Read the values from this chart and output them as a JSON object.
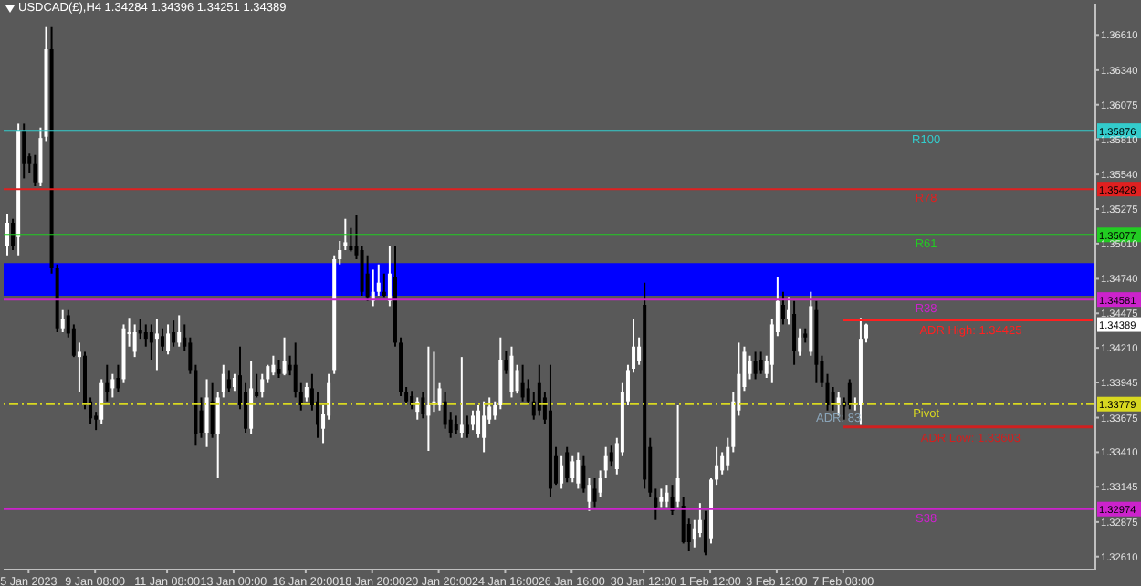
{
  "chart_data": {
    "type": "candlestick",
    "title": "USDCAD(£),H4  1.34284 1.34396 1.34251 1.34389",
    "categories": [
      null,
      null,
      null,
      null,
      "5 Jan 2023",
      null,
      null,
      null,
      null,
      null,
      null,
      null,
      null,
      null,
      null,
      null,
      "9 Jan 08:00",
      null,
      null,
      null,
      null,
      null,
      null,
      null,
      null,
      null,
      null,
      null,
      null,
      "11 Jan 08:00",
      null,
      null,
      null,
      null,
      null,
      null,
      null,
      null,
      null,
      null,
      null,
      "13 Jan 00:00",
      null,
      null,
      null,
      null,
      null,
      null,
      null,
      null,
      null,
      null,
      null,
      null,
      "16 Jan 20:00",
      null,
      null,
      null,
      null,
      null,
      null,
      null,
      null,
      null,
      null,
      null,
      "18 Jan 20:00",
      null,
      null,
      null,
      null,
      null,
      null,
      null,
      null,
      null,
      null,
      null,
      "20 Jan 20:00",
      null,
      null,
      null,
      null,
      null,
      null,
      null,
      null,
      null,
      null,
      null,
      "24 Jan 16:00",
      null,
      null,
      null,
      null,
      null,
      null,
      null,
      null,
      null,
      null,
      null,
      "26 Jan 16:00",
      null,
      null,
      null,
      null,
      null,
      null,
      null,
      null,
      null,
      null,
      null,
      null,
      "30 Jan 12:00",
      null,
      null,
      null,
      null,
      null,
      null,
      null,
      null,
      null,
      null,
      null,
      "1 Feb 12:00",
      null,
      null,
      null,
      null,
      null,
      null,
      null,
      null,
      null,
      null,
      null,
      "3 Feb 12:00",
      null,
      null,
      null,
      null,
      null,
      null,
      null,
      null,
      null,
      null,
      null,
      "7 Feb 08:00",
      null,
      null,
      null,
      null,
      null,
      null,
      null,
      null,
      null,
      null,
      null,
      null,
      null,
      null,
      null,
      null,
      null,
      null,
      null,
      null,
      null,
      null,
      null,
      null,
      null,
      null,
      null,
      null,
      null,
      null,
      null,
      null,
      null,
      null,
      null,
      null,
      null,
      null,
      null,
      null,
      null,
      null,
      null,
      null,
      null
    ],
    "ohlc": [
      [
        1.3499,
        1.3524,
        1.3492,
        1.3517
      ],
      [
        1.3517,
        1.352,
        1.3496,
        1.3499
      ],
      [
        1.3506,
        1.3593,
        1.3492,
        1.3587
      ],
      [
        1.3587,
        1.3593,
        1.3551,
        1.3562
      ],
      [
        1.3568,
        1.357,
        1.3555,
        1.3562
      ],
      [
        1.3562,
        1.3569,
        1.3545,
        1.3548
      ],
      [
        1.3548,
        1.359,
        1.3545,
        1.3582
      ],
      [
        1.3583,
        1.3667,
        1.3579,
        1.365
      ],
      [
        1.365,
        1.3667,
        1.3478,
        1.3482
      ],
      [
        1.3482,
        1.3485,
        1.3433,
        1.3436
      ],
      [
        1.3436,
        1.345,
        1.3433,
        1.3443
      ],
      [
        1.3446,
        1.345,
        1.3429,
        1.3432
      ],
      [
        1.3436,
        1.3439,
        1.3414,
        1.3415
      ],
      [
        1.3414,
        1.3425,
        1.3387,
        1.3418
      ],
      [
        1.3415,
        1.3418,
        1.3374,
        1.3377
      ],
      [
        1.338,
        1.3383,
        1.3363,
        1.3367
      ],
      [
        1.3369,
        1.3372,
        1.3358,
        1.3366
      ],
      [
        1.3366,
        1.3397,
        1.3363,
        1.3394
      ],
      [
        1.3394,
        1.3408,
        1.338,
        1.3387
      ],
      [
        1.339,
        1.3401,
        1.3383,
        1.3397
      ],
      [
        1.3398,
        1.3408,
        1.3387,
        1.339
      ],
      [
        1.3397,
        1.3439,
        1.3394,
        1.3436
      ],
      [
        1.3432,
        1.3444,
        1.3422,
        1.3433
      ],
      [
        1.3418,
        1.3439,
        1.3414,
        1.3433
      ],
      [
        1.3435,
        1.3443,
        1.3428,
        1.3432
      ],
      [
        1.3433,
        1.3439,
        1.3422,
        1.3428
      ],
      [
        1.3433,
        1.3439,
        1.3412,
        1.3425
      ],
      [
        1.3428,
        1.3443,
        1.3404,
        1.3432
      ],
      [
        1.343,
        1.3436,
        1.3419,
        1.3422
      ],
      [
        1.3419,
        1.3439,
        1.3416,
        1.3432
      ],
      [
        1.3433,
        1.3442,
        1.3422,
        1.3425
      ],
      [
        1.3425,
        1.3446,
        1.3422,
        1.3433
      ],
      [
        1.3429,
        1.3439,
        1.3419,
        1.3422
      ],
      [
        1.3425,
        1.3429,
        1.3401,
        1.3404
      ],
      [
        1.3404,
        1.3408,
        1.3346,
        1.3355
      ],
      [
        1.3373,
        1.3383,
        1.3352,
        1.3356
      ],
      [
        1.3356,
        1.3397,
        1.3345,
        1.3383
      ],
      [
        1.338,
        1.3394,
        1.3352,
        1.3355
      ],
      [
        1.3355,
        1.3387,
        1.3321,
        1.3383
      ],
      [
        1.3387,
        1.3408,
        1.3383,
        1.3401
      ],
      [
        1.3397,
        1.3404,
        1.3387,
        1.339
      ],
      [
        1.3391,
        1.3401,
        1.3388,
        1.3398
      ],
      [
        1.34,
        1.3422,
        1.3374,
        1.3377
      ],
      [
        1.3387,
        1.3394,
        1.3356,
        1.3359
      ],
      [
        1.3359,
        1.3411,
        1.3355,
        1.339
      ],
      [
        1.3387,
        1.3401,
        1.3383,
        1.3384
      ],
      [
        1.3387,
        1.3401,
        1.3383,
        1.3397
      ],
      [
        1.3397,
        1.3408,
        1.3394,
        1.3407
      ],
      [
        1.3402,
        1.3415,
        1.34,
        1.3408
      ],
      [
        1.3405,
        1.3412,
        1.3398,
        1.3401
      ],
      [
        1.3401,
        1.3429,
        1.34,
        1.3411
      ],
      [
        1.3408,
        1.3415,
        1.34,
        1.3404
      ],
      [
        1.3408,
        1.3425,
        1.3383,
        1.3387
      ],
      [
        1.3387,
        1.3394,
        1.3373,
        1.3377
      ],
      [
        1.3383,
        1.3394,
        1.338,
        1.3391
      ],
      [
        1.339,
        1.3401,
        1.3373,
        1.3377
      ],
      [
        1.338,
        1.3387,
        1.3352,
        1.3362
      ],
      [
        1.3359,
        1.3377,
        1.3348,
        1.337
      ],
      [
        1.3369,
        1.3401,
        1.3366,
        1.3394
      ],
      [
        1.3404,
        1.3492,
        1.3401,
        1.3489
      ],
      [
        1.3489,
        1.3503,
        1.3485,
        1.3496
      ],
      [
        1.3499,
        1.352,
        1.3496,
        1.3502
      ],
      [
        1.3499,
        1.3513,
        1.3495,
        1.3496
      ],
      [
        1.3499,
        1.3523,
        1.3489,
        1.3492
      ],
      [
        1.3496,
        1.3499,
        1.3461,
        1.3464
      ],
      [
        1.3478,
        1.3492,
        1.3457,
        1.346
      ],
      [
        1.3457,
        1.3481,
        1.3453,
        1.3464
      ],
      [
        1.3464,
        1.3485,
        1.3461,
        1.3471
      ],
      [
        1.3464,
        1.3478,
        1.346,
        1.3461
      ],
      [
        1.3457,
        1.3499,
        1.3453,
        1.3478
      ],
      [
        1.3475,
        1.3499,
        1.3422,
        1.3425
      ],
      [
        1.3425,
        1.3429,
        1.3384,
        1.3387
      ],
      [
        1.3387,
        1.3391,
        1.3377,
        1.338
      ],
      [
        1.3384,
        1.3388,
        1.3374,
        1.3377
      ],
      [
        1.3372,
        1.3383,
        1.3366,
        1.338
      ],
      [
        1.3383,
        1.3387,
        1.3367,
        1.337
      ],
      [
        1.3369,
        1.3422,
        1.3342,
        1.3377
      ],
      [
        1.3377,
        1.3418,
        1.3372,
        1.338
      ],
      [
        1.3377,
        1.3394,
        1.3373,
        1.339
      ],
      [
        1.338,
        1.3387,
        1.3359,
        1.3362
      ],
      [
        1.3366,
        1.3372,
        1.3352,
        1.3356
      ],
      [
        1.3363,
        1.3369,
        1.3355,
        1.3358
      ],
      [
        1.3356,
        1.3414,
        1.3352,
        1.3362
      ],
      [
        1.3362,
        1.3369,
        1.3352,
        1.3355
      ],
      [
        1.3362,
        1.3373,
        1.3358,
        1.3369
      ],
      [
        1.3355,
        1.3377,
        1.3352,
        1.3373
      ],
      [
        1.3352,
        1.338,
        1.3341,
        1.3369
      ],
      [
        1.3366,
        1.3383,
        1.3363,
        1.3376
      ],
      [
        1.3369,
        1.338,
        1.3366,
        1.3377
      ],
      [
        1.3377,
        1.3429,
        1.3374,
        1.3412
      ],
      [
        1.3412,
        1.3419,
        1.3401,
        1.3404
      ],
      [
        1.3387,
        1.3422,
        1.3383,
        1.3415
      ],
      [
        1.3388,
        1.3408,
        1.3386,
        1.3404
      ],
      [
        1.3394,
        1.3408,
        1.338,
        1.3383
      ],
      [
        1.339,
        1.3397,
        1.3377,
        1.338
      ],
      [
        1.338,
        1.3387,
        1.3366,
        1.3369
      ],
      [
        1.3394,
        1.3408,
        1.3369,
        1.3373
      ],
      [
        1.3383,
        1.3387,
        1.3363,
        1.3366
      ],
      [
        1.3373,
        1.3408,
        1.3307,
        1.3313
      ],
      [
        1.3338,
        1.3345,
        1.3316,
        1.3317
      ],
      [
        1.3317,
        1.3338,
        1.3313,
        1.3331
      ],
      [
        1.3341,
        1.3345,
        1.3318,
        1.3321
      ],
      [
        1.3321,
        1.3338,
        1.3318,
        1.3334
      ],
      [
        1.3317,
        1.3341,
        1.3313,
        1.3335
      ],
      [
        1.3331,
        1.3338,
        1.331,
        1.3313
      ],
      [
        1.3303,
        1.3321,
        1.3296,
        1.3316
      ],
      [
        1.3313,
        1.3321,
        1.3299,
        1.3303
      ],
      [
        1.331,
        1.3327,
        1.3307,
        1.3321
      ],
      [
        1.3327,
        1.3345,
        1.3321,
        1.3338
      ],
      [
        1.3341,
        1.3346,
        1.333,
        1.3334
      ],
      [
        1.3328,
        1.3352,
        1.3324,
        1.3348
      ],
      [
        1.3341,
        1.3394,
        1.3338,
        1.3387
      ],
      [
        1.338,
        1.3408,
        1.3377,
        1.3404
      ],
      [
        1.3405,
        1.3443,
        1.3402,
        1.3422
      ],
      [
        1.3411,
        1.3429,
        1.3408,
        1.3422
      ],
      [
        1.3454,
        1.3471,
        1.3313,
        1.332
      ],
      [
        1.3345,
        1.3352,
        1.3307,
        1.331
      ],
      [
        1.3306,
        1.3313,
        1.3289,
        1.3299
      ],
      [
        1.3303,
        1.3313,
        1.3299,
        1.3307
      ],
      [
        1.3303,
        1.3316,
        1.3299,
        1.331
      ],
      [
        1.3307,
        1.3316,
        1.3293,
        1.3296
      ],
      [
        1.3303,
        1.3377,
        1.3299,
        1.3321
      ],
      [
        1.33,
        1.3307,
        1.3271,
        1.3272
      ],
      [
        1.3286,
        1.329,
        1.3265,
        1.3272
      ],
      [
        1.3274,
        1.3289,
        1.3268,
        1.3282
      ],
      [
        1.3279,
        1.3302,
        1.3276,
        1.3289
      ],
      [
        1.3289,
        1.3296,
        1.3262,
        1.3264
      ],
      [
        1.3275,
        1.3321,
        1.3271,
        1.332
      ],
      [
        1.332,
        1.3345,
        1.3316,
        1.3331
      ],
      [
        1.3327,
        1.3341,
        1.3324,
        1.3338
      ],
      [
        1.3331,
        1.3352,
        1.3327,
        1.3345
      ],
      [
        1.3345,
        1.3387,
        1.3341,
        1.338
      ],
      [
        1.3373,
        1.3425,
        1.3369,
        1.3401
      ],
      [
        1.3391,
        1.3422,
        1.3388,
        1.3418
      ],
      [
        1.3401,
        1.3415,
        1.3397,
        1.3411
      ],
      [
        1.3411,
        1.3418,
        1.3397,
        1.3401
      ],
      [
        1.3412,
        1.3418,
        1.3401,
        1.3404
      ],
      [
        1.3401,
        1.3415,
        1.3398,
        1.3411
      ],
      [
        1.3408,
        1.3443,
        1.3394,
        1.3439
      ],
      [
        1.3433,
        1.3475,
        1.343,
        1.3457
      ],
      [
        1.3454,
        1.3464,
        1.3439,
        1.3443
      ],
      [
        1.3443,
        1.346,
        1.3439,
        1.345
      ],
      [
        1.3447,
        1.3457,
        1.3408,
        1.3419
      ],
      [
        1.3418,
        1.3436,
        1.3415,
        1.3429
      ],
      [
        1.3432,
        1.3436,
        1.3425,
        1.3429
      ],
      [
        1.3418,
        1.3464,
        1.3415,
        1.3453
      ],
      [
        1.345,
        1.3457,
        1.3394,
        1.3408
      ],
      [
        1.3411,
        1.3415,
        1.3391,
        1.3394
      ],
      [
        1.3394,
        1.3401,
        1.3373,
        1.3377
      ],
      [
        1.3387,
        1.3391,
        1.3373,
        1.3377
      ],
      [
        1.3377,
        1.3387,
        1.3369,
        1.3383
      ],
      [
        1.338,
        1.3383,
        1.3366,
        1.3376
      ],
      [
        1.3394,
        1.3397,
        1.3374,
        1.3377
      ],
      [
        1.3377,
        1.3383,
        1.3373,
        1.3379
      ],
      [
        1.3377,
        1.3444,
        1.3362,
        1.3428
      ],
      [
        1.34284,
        1.34396,
        1.34251,
        1.34389
      ],
      null,
      null,
      null,
      null,
      null,
      null,
      null,
      null,
      null,
      null,
      null,
      null,
      null,
      null,
      null,
      null,
      null,
      null,
      null,
      null,
      null,
      null,
      null,
      null,
      null,
      null,
      null,
      null,
      null,
      null,
      null,
      null,
      null,
      null,
      null,
      null,
      null,
      null,
      null,
      null,
      null
    ],
    "colors": [
      "#ffffff",
      "#000000",
      "#ffffff",
      "#000000",
      "#000000",
      "#000000",
      "#ffffff",
      "#ffffff",
      "#000000",
      "#000000",
      "#ffffff",
      "#000000",
      "#000000",
      "#ffffff",
      "#000000",
      "#000000",
      "#000000",
      "#ffffff",
      "#000000",
      "#ffffff",
      "#000000",
      "#ffffff",
      "#ffffff",
      "#ffffff",
      "#000000",
      "#000000",
      "#000000",
      "#ffffff",
      "#000000",
      "#ffffff",
      "#000000",
      "#ffffff",
      "#000000",
      "#000000",
      "#000000",
      "#000000",
      "#ffffff",
      "#000000",
      "#ffffff",
      "#ffffff",
      "#000000",
      "#ffffff",
      "#000000",
      "#000000",
      "#ffffff",
      "#000000",
      "#ffffff",
      "#ffffff",
      "#ffffff",
      "#000000",
      "#ffffff",
      "#000000",
      "#000000",
      "#000000",
      "#ffffff",
      "#000000",
      "#000000",
      "#ffffff",
      "#ffffff",
      "#ffffff",
      "#ffffff",
      "#ffffff",
      "#000000",
      "#000000",
      "#000000",
      "#000000",
      "#ffffff",
      "#ffffff",
      "#000000",
      "#ffffff",
      "#000000",
      "#000000",
      "#000000",
      "#000000",
      "#ffffff",
      "#000000",
      "#ffffff",
      "#ffffff",
      "#ffffff",
      "#000000",
      "#000000",
      "#000000",
      "#ffffff",
      "#000000",
      "#ffffff",
      "#ffffff",
      "#ffffff",
      "#ffffff",
      "#ffffff",
      "#ffffff",
      "#000000",
      "#ffffff",
      "#ffffff",
      "#000000",
      "#000000",
      "#000000",
      "#000000",
      "#000000",
      "#000000",
      "#000000",
      "#ffffff",
      "#000000",
      "#ffffff",
      "#ffffff",
      "#000000",
      "#ffffff",
      "#000000",
      "#ffffff",
      "#ffffff",
      "#000000",
      "#ffffff",
      "#ffffff",
      "#ffffff",
      "#ffffff",
      "#ffffff",
      "#000000",
      "#000000",
      "#000000",
      "#ffffff",
      "#ffffff",
      "#000000",
      "#ffffff",
      "#000000",
      "#000000",
      "#ffffff",
      "#ffffff",
      "#000000",
      "#ffffff",
      "#ffffff",
      "#ffffff",
      "#ffffff",
      "#ffffff",
      "#ffffff",
      "#ffffff",
      "#ffffff",
      "#000000",
      "#000000",
      "#ffffff",
      "#ffffff",
      "#ffffff",
      "#000000",
      "#ffffff",
      "#000000",
      "#ffffff",
      "#000000",
      "#ffffff",
      "#000000",
      "#000000",
      "#000000",
      "#000000",
      "#ffffff",
      "#000000",
      "#000000",
      "#ffffff",
      "#ffffff",
      "#ffffff",
      "#ffffff",
      "#ffffff",
      null,
      null,
      null,
      null,
      null,
      null,
      null,
      null,
      null,
      null,
      null,
      null,
      null,
      null,
      null,
      null,
      null,
      null,
      null,
      null,
      null,
      null,
      null,
      null,
      null,
      null,
      null,
      null,
      null,
      null,
      null,
      null,
      null,
      null,
      null,
      null,
      null,
      null,
      null
    ],
    "series": [
      {
        "type": "line",
        "name": "ADR High: 1.34425",
        "color": "#ff2020",
        "values": [
          null,
          null,
          null,
          null,
          null,
          null,
          null,
          null,
          null,
          null,
          null,
          null,
          null,
          null,
          null,
          null,
          null,
          null,
          null,
          null,
          null,
          null,
          null,
          null,
          null,
          null,
          null,
          null,
          null,
          null,
          null,
          null,
          null,
          null,
          null,
          null,
          null,
          null,
          null,
          null,
          null,
          null,
          null,
          null,
          null,
          null,
          null,
          null,
          null,
          null,
          null,
          null,
          null,
          null,
          null,
          null,
          null,
          null,
          null,
          null,
          null,
          null,
          null,
          null,
          null,
          null,
          null,
          null,
          null,
          null,
          null,
          null,
          null,
          null,
          null,
          null,
          null,
          null,
          null,
          null,
          null,
          null,
          null,
          null,
          null,
          null,
          null,
          null,
          null,
          null,
          null,
          null,
          null,
          null,
          null,
          null,
          null,
          null,
          null,
          null,
          null,
          null,
          null,
          null,
          null,
          null,
          null,
          null,
          null,
          null,
          null,
          null,
          null,
          null,
          null,
          null,
          null,
          null,
          null,
          null,
          null,
          null,
          null,
          null,
          null,
          null,
          null,
          null,
          null,
          null,
          null,
          null,
          null,
          null,
          null,
          null,
          null,
          null,
          null,
          null,
          null,
          null,
          null,
          null,
          null,
          null,
          null,
          null,
          null,
          null,
          null,
          1.34425,
          1.34425,
          1.34425,
          1.34425,
          1.34425,
          1.34425,
          1.34425,
          1.34425,
          1.34425,
          1.34425,
          1.34425,
          1.34425,
          1.34425,
          1.34425,
          1.34425,
          1.34425,
          1.34425,
          1.34425,
          1.34425,
          1.34425,
          1.34425,
          1.34425,
          1.34425,
          1.34425,
          1.34425,
          1.34425,
          1.34425,
          1.34425,
          1.34425,
          1.34425,
          1.34425,
          1.34425,
          1.34425,
          1.34425,
          1.34425,
          1.34425,
          1.34425,
          1.34425,
          1.34425,
          1.34425,
          1.34425,
          1.34425,
          1.34425,
          1.34425,
          1.34425,
          1.34425
        ]
      },
      {
        "type": "line",
        "name": "ADR Low: 1.33603",
        "color": "#d02020",
        "values": [
          null,
          null,
          null,
          null,
          null,
          null,
          null,
          null,
          null,
          null,
          null,
          null,
          null,
          null,
          null,
          null,
          null,
          null,
          null,
          null,
          null,
          null,
          null,
          null,
          null,
          null,
          null,
          null,
          null,
          null,
          null,
          null,
          null,
          null,
          null,
          null,
          null,
          null,
          null,
          null,
          null,
          null,
          null,
          null,
          null,
          null,
          null,
          null,
          null,
          null,
          null,
          null,
          null,
          null,
          null,
          null,
          null,
          null,
          null,
          null,
          null,
          null,
          null,
          null,
          null,
          null,
          null,
          null,
          null,
          null,
          null,
          null,
          null,
          null,
          null,
          null,
          null,
          null,
          null,
          null,
          null,
          null,
          null,
          null,
          null,
          null,
          null,
          null,
          null,
          null,
          null,
          null,
          null,
          null,
          null,
          null,
          null,
          null,
          null,
          null,
          null,
          null,
          null,
          null,
          null,
          null,
          null,
          null,
          null,
          null,
          null,
          null,
          null,
          null,
          null,
          null,
          null,
          null,
          null,
          null,
          null,
          null,
          null,
          null,
          null,
          null,
          null,
          null,
          null,
          null,
          null,
          null,
          null,
          null,
          null,
          null,
          null,
          null,
          null,
          null,
          null,
          null,
          null,
          null,
          null,
          null,
          null,
          null,
          null,
          null,
          null,
          1.33603,
          1.33603,
          1.33603,
          1.33603,
          1.33603,
          1.33603,
          1.33603,
          1.33603,
          1.33603,
          1.33603,
          1.33603,
          1.33603,
          1.33603,
          1.33603,
          1.33603,
          1.33603,
          1.33603,
          1.33603,
          1.33603,
          1.33603,
          1.33603,
          1.33603,
          1.33603,
          1.33603,
          1.33603,
          1.33603,
          1.33603,
          1.33603,
          1.33603,
          1.33603,
          1.33603,
          1.33603,
          1.33603,
          1.33603,
          1.33603,
          1.33603,
          1.33603,
          1.33603,
          1.33603,
          1.33603,
          1.33603,
          1.33603,
          1.33603,
          1.33603,
          1.33603,
          1.33603
        ]
      }
    ],
    "ylim": [
      1.3251,
      1.3685
    ],
    "yticks": [
      {
        "value": 1.3261,
        "label": "1.32610"
      },
      {
        "value": 1.32875,
        "label": "1.32875"
      },
      {
        "value": 1.33145,
        "label": "1.33145"
      },
      {
        "value": 1.3341,
        "label": "1.33410"
      },
      {
        "value": 1.33675,
        "label": "1.33675"
      },
      {
        "value": 1.33945,
        "label": "1.33945"
      },
      {
        "value": 1.3421,
        "label": "1.34210"
      },
      {
        "value": 1.34475,
        "label": "1.34475"
      },
      {
        "value": 1.3474,
        "label": "1.34740"
      },
      {
        "value": 1.3501,
        "label": "1.35010"
      },
      {
        "value": 1.35275,
        "label": "1.35275"
      },
      {
        "value": 1.3554,
        "label": "1.35540"
      },
      {
        "value": 1.3581,
        "label": "1.35810"
      },
      {
        "value": 1.36075,
        "label": "1.36075"
      },
      {
        "value": 1.3634,
        "label": "1.36340"
      },
      {
        "value": 1.3661,
        "label": "1.36610"
      }
    ],
    "ref_lines": [
      {
        "axis": "y",
        "value": 1.35876,
        "label": "R100",
        "color": "#33cccc"
      },
      {
        "axis": "y",
        "value": 1.35428,
        "label": "R78",
        "color": "#e02020"
      },
      {
        "axis": "y",
        "value": 1.35077,
        "label": "R61",
        "color": "#22cc22"
      },
      {
        "axis": "y",
        "value": 1.34581,
        "label": "R38",
        "color": "#cc22cc"
      },
      {
        "axis": "y",
        "value": 1.33779,
        "label": "Pivot",
        "color": "#d8d820",
        "line_style": "dashed"
      },
      {
        "axis": "y",
        "value": 1.32974,
        "label": "S38",
        "color": "#cc22cc"
      }
    ],
    "bands": [
      {
        "axis": "y",
        "from": 1.3461,
        "to": 1.3486,
        "color": "#0000ff"
      }
    ],
    "annotations": [
      "ADR: 83",
      {
        "text": "1.34389",
        "y": 1.34389
      },
      {
        "text": "1.35876",
        "y": 1.35876
      },
      {
        "text": "1.35428",
        "y": 1.35428
      },
      {
        "text": "1.35077",
        "y": 1.35077
      },
      {
        "text": "1.34581",
        "y": 1.34581
      },
      {
        "text": "1.33779",
        "y": 1.33779
      },
      {
        "text": "1.32974",
        "y": 1.32974
      }
    ]
  }
}
